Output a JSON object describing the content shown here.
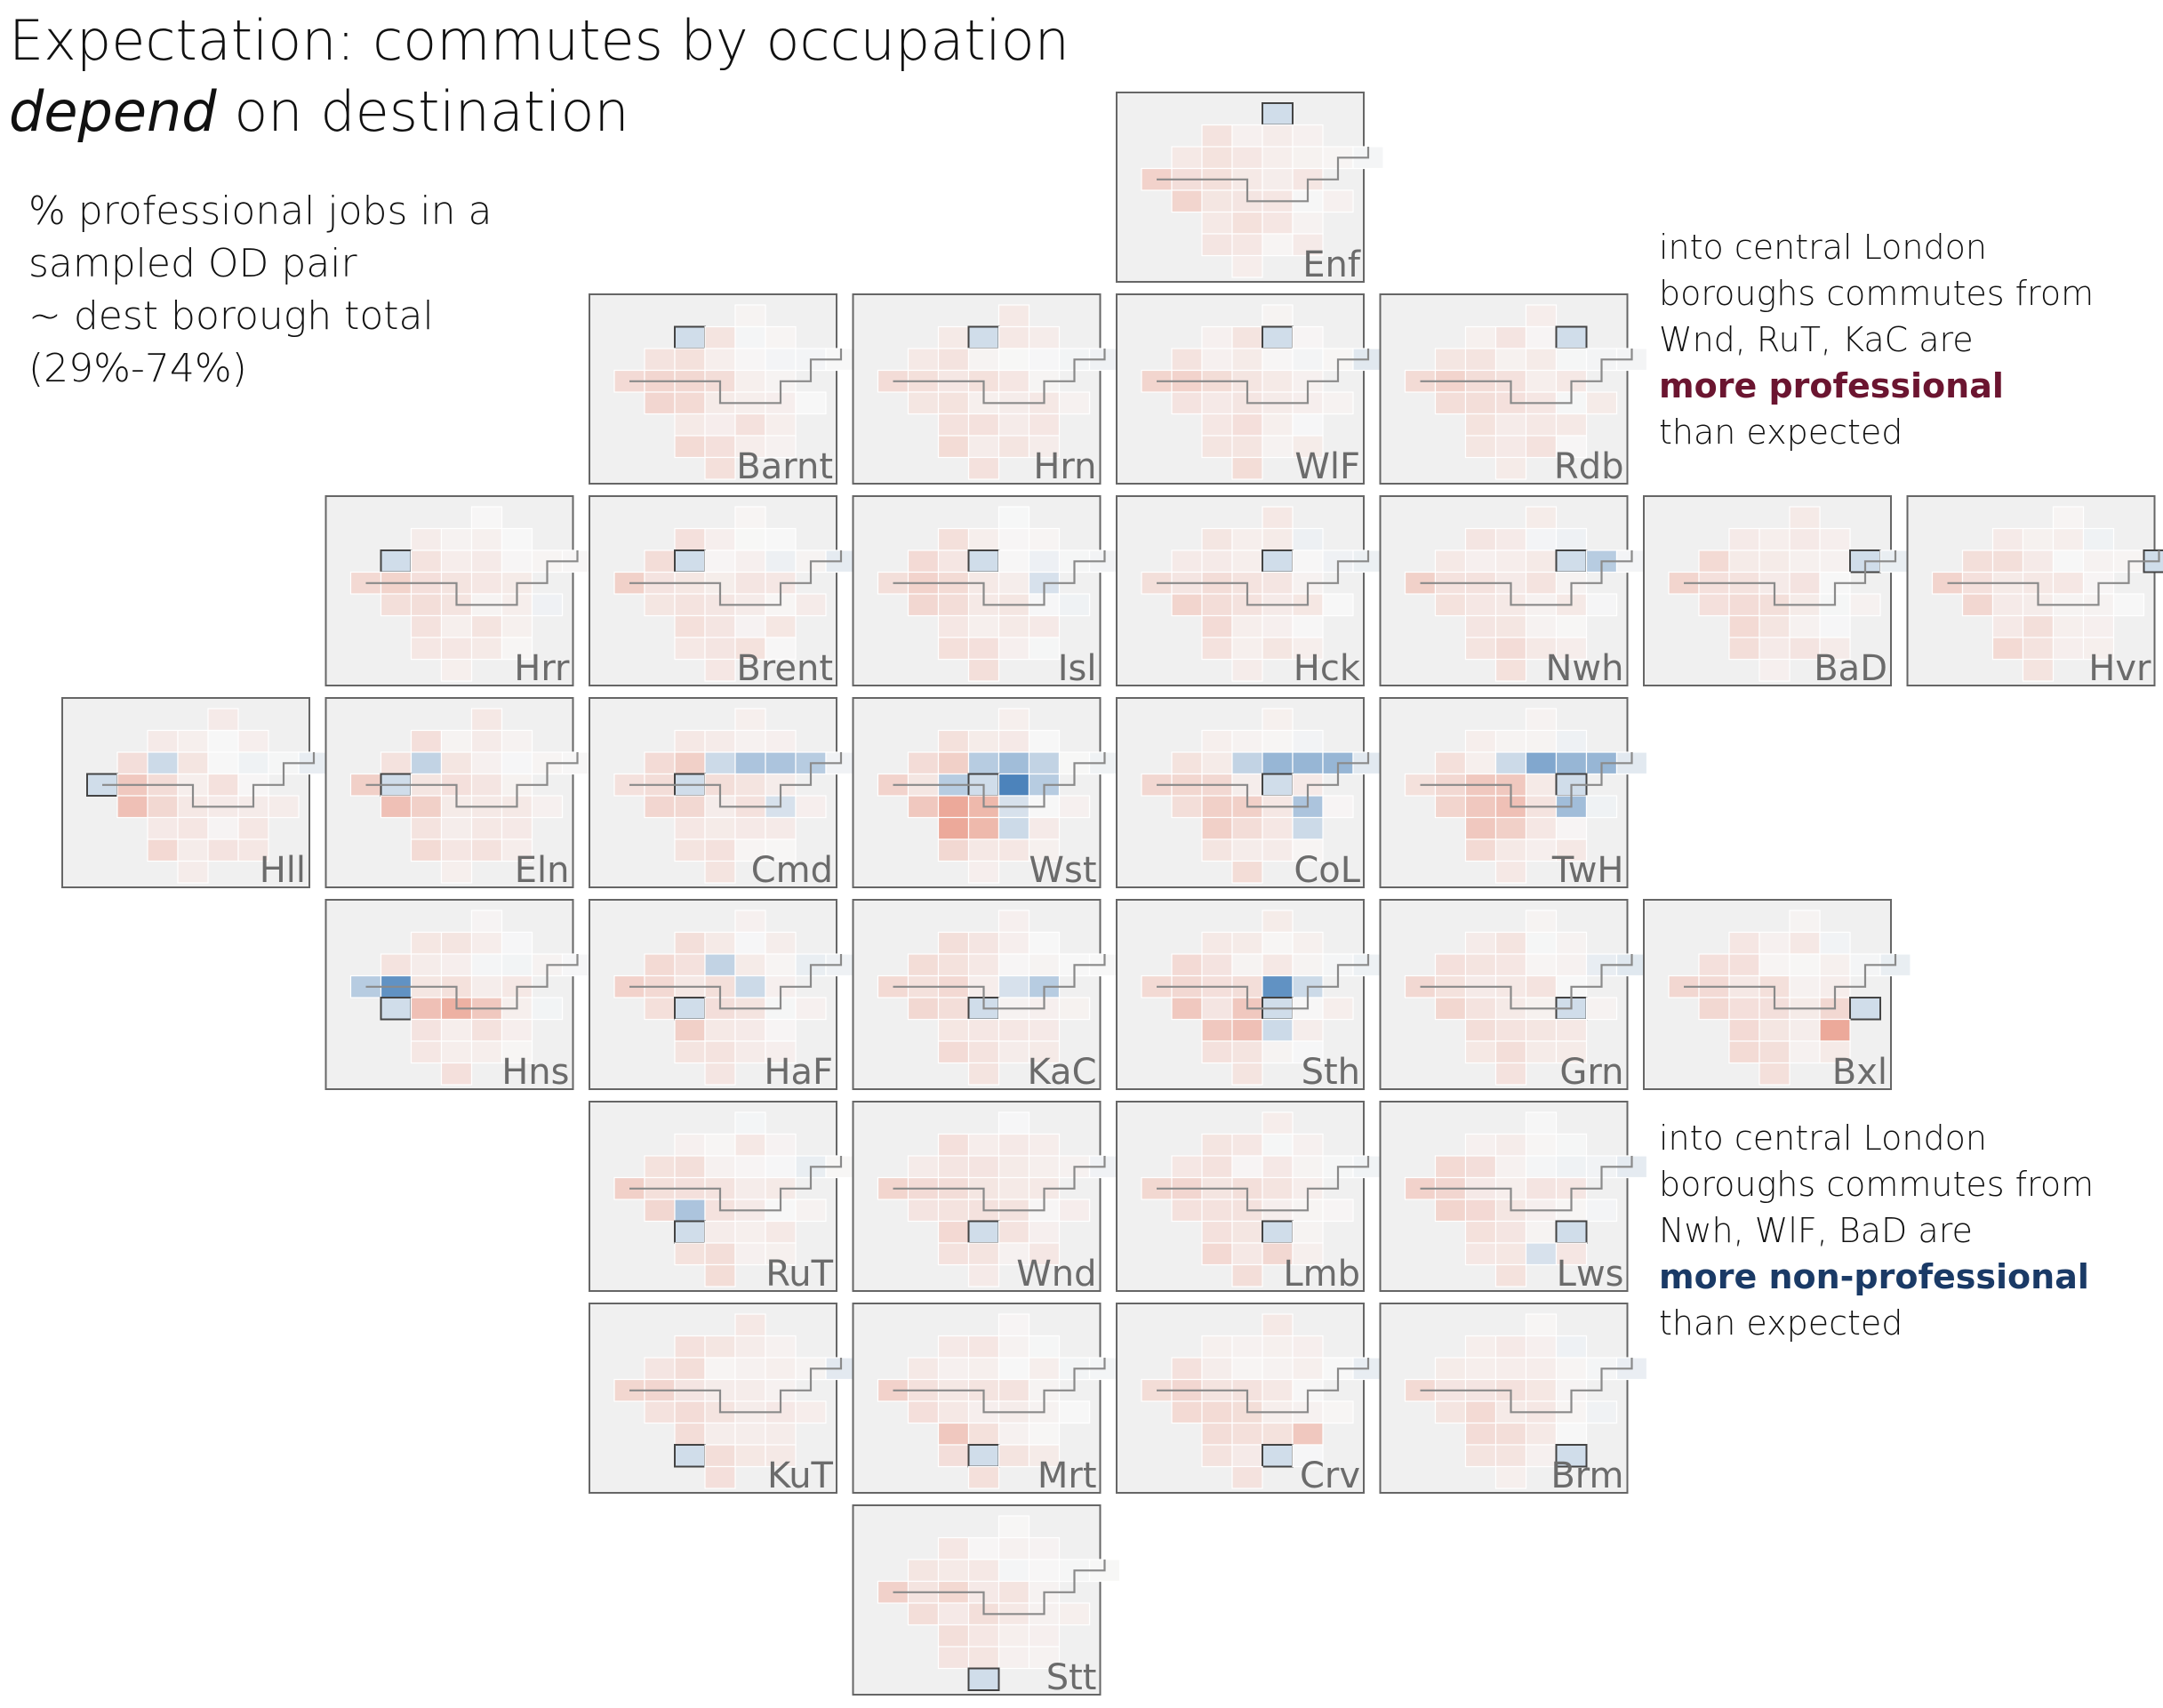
{
  "title": {
    "line1": "Expectation: commutes by occupation",
    "line2_em": "depend",
    "line2_rest": " on destination"
  },
  "subtitle": {
    "lines": [
      "% professional jobs in a",
      "sampled OD pair",
      "~ dest borough total",
      "(29%-74%)"
    ]
  },
  "annotations": {
    "professional": {
      "lines": [
        "into central London",
        "boroughs commutes from",
        "Wnd, RuT, KaC are"
      ],
      "highlight": "more professional",
      "after": "than expected",
      "color": "#6b1530"
    },
    "nonprofessional": {
      "lines": [
        "into central London",
        "boroughs commutes from",
        "Nwh, WlF, BaD are"
      ],
      "highlight": "more non-professional",
      "after": "than expected",
      "color": "#1a3a66"
    }
  },
  "colors": {
    "panel_bg": "#f0f0f0",
    "panel_border": "#666666",
    "cell_border": "#ffffff",
    "diverging_low": "#2166ac",
    "diverging_mid": "#f7f7f7",
    "diverging_high": "#e05b3c"
  },
  "chart_data": {
    "type": "heatmap",
    "layout": "gridmap of London boroughs; each panel = destination borough, cells = origin boroughs on the same gridmap, colored by deviation of % professional jobs from the destination borough total",
    "legend": "none",
    "grid_cols": 8,
    "grid_rows": 8,
    "panels": [
      {
        "label": "Enf",
        "col": 4,
        "row": 0
      },
      {
        "label": "Barnt",
        "col": 2,
        "row": 1
      },
      {
        "label": "Hrn",
        "col": 3,
        "row": 1
      },
      {
        "label": "WlF",
        "col": 4,
        "row": 1
      },
      {
        "label": "Rdb",
        "col": 5,
        "row": 1
      },
      {
        "label": "Hrr",
        "col": 1,
        "row": 2
      },
      {
        "label": "Brent",
        "col": 2,
        "row": 2
      },
      {
        "label": "Isl",
        "col": 3,
        "row": 2
      },
      {
        "label": "Hck",
        "col": 4,
        "row": 2
      },
      {
        "label": "Nwh",
        "col": 5,
        "row": 2
      },
      {
        "label": "BaD",
        "col": 6,
        "row": 2
      },
      {
        "label": "Hvr",
        "col": 7,
        "row": 2
      },
      {
        "label": "Hll",
        "col": 0,
        "row": 3
      },
      {
        "label": "Eln",
        "col": 1,
        "row": 3
      },
      {
        "label": "Cmd",
        "col": 2,
        "row": 3
      },
      {
        "label": "Wst",
        "col": 3,
        "row": 3
      },
      {
        "label": "CoL",
        "col": 4,
        "row": 3
      },
      {
        "label": "TwH",
        "col": 5,
        "row": 3
      },
      {
        "label": "Hns",
        "col": 1,
        "row": 4
      },
      {
        "label": "HaF",
        "col": 2,
        "row": 4
      },
      {
        "label": "KaC",
        "col": 3,
        "row": 4
      },
      {
        "label": "Sth",
        "col": 4,
        "row": 4
      },
      {
        "label": "Grn",
        "col": 5,
        "row": 4
      },
      {
        "label": "Bxl",
        "col": 6,
        "row": 4
      },
      {
        "label": "RuT",
        "col": 2,
        "row": 5
      },
      {
        "label": "Wnd",
        "col": 3,
        "row": 5
      },
      {
        "label": "Lmb",
        "col": 4,
        "row": 5
      },
      {
        "label": "Lws",
        "col": 5,
        "row": 5
      },
      {
        "label": "KuT",
        "col": 2,
        "row": 6
      },
      {
        "label": "Mrt",
        "col": 3,
        "row": 6
      },
      {
        "label": "Crv",
        "col": 4,
        "row": 6
      },
      {
        "label": "Brm",
        "col": 5,
        "row": 6
      },
      {
        "label": "Stt",
        "col": 3,
        "row": 7
      }
    ],
    "highlights": {
      "Wst": {
        "CoL": -0.8,
        "Isl": -0.3,
        "Hck": -0.4,
        "Cmd": -0.3,
        "TwH": -0.3,
        "HaF": 0.5,
        "KaC": 0.4,
        "RuT": 0.5,
        "Wnd": 0.4,
        "Brent": 0.25,
        "Hns": 0.3,
        "Nwh": -0.25,
        "Lmb": -0.2,
        "Sth": -0.15
      },
      "CoL": {
        "Hck": -0.45,
        "Nwh": -0.45,
        "BaD": -0.45,
        "Grn": -0.35,
        "Lws": -0.2,
        "Isl": -0.25,
        "Cmd": 0.2,
        "HaF": 0.25,
        "KaC": 0.25,
        "RuT": 0.25
      },
      "TwH": {
        "Hck": -0.55,
        "Nwh": -0.45,
        "BaD": -0.45,
        "Grn": -0.4,
        "Isl": -0.2,
        "Cmd": 0.3,
        "Wst": 0.3,
        "HaF": 0.3,
        "KaC": 0.35,
        "RuT": 0.3,
        "Wnd": 0.25
      },
      "Cmd": {
        "Hck": -0.35,
        "Nwh": -0.35,
        "BaD": -0.3,
        "Isl": -0.2,
        "Grn": -0.15,
        "Brent": 0.25,
        "HaF": 0.2
      },
      "Eln": {
        "Brent": -0.25,
        "Hns": 0.35,
        "HaF": 0.25
      },
      "Hll": {
        "Brent": -0.2,
        "Eln": 0.3,
        "Hns": 0.35
      },
      "Hns": {
        "Eln": -0.7,
        "Hll": -0.3,
        "KaC": 0.45,
        "HaF": 0.35,
        "Sth": 0.3
      },
      "Sth": {
        "CoL": -0.7,
        "Lmb": -0.2,
        "TwH": -0.2,
        "Wnd": 0.35,
        "RuT": 0.3,
        "KaC": 0.3,
        "Hns": 0.3
      },
      "Nwh": {
        "BaD": -0.3
      },
      "Isl": {
        "TwH": -0.15
      },
      "Bxl": {
        "Lws": 0.5,
        "Grn": 0.2
      },
      "HaF": {
        "Isl": -0.25,
        "CoL": -0.2,
        "RuT": 0.25
      },
      "KaC": {
        "TwH": -0.3,
        "CoL": -0.15
      },
      "RuT": {
        "HaF": -0.35
      },
      "Lmb": {
        "Crv": 0.2
      },
      "Crv": {
        "Lws": 0.3
      },
      "Mrt": {
        "RuT": 0.3
      },
      "Lws": {
        "Crv": -0.15
      }
    }
  }
}
